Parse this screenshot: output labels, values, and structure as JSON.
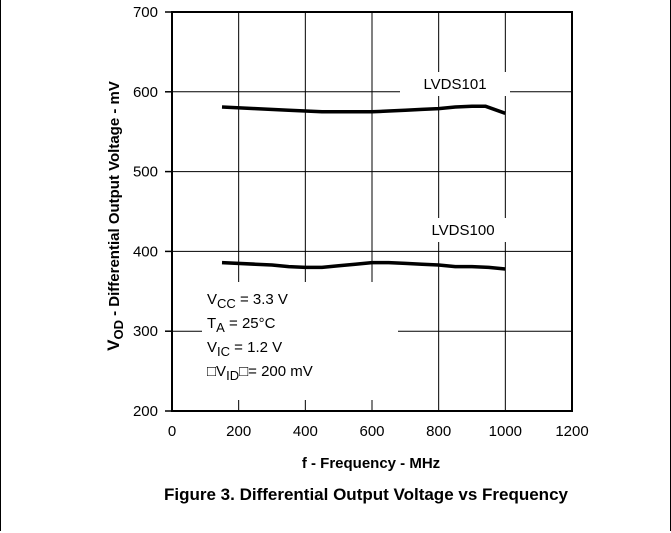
{
  "chart_data": {
    "type": "line",
    "title": "Figure 3. Differential Output Voltage vs Frequency",
    "xlabel": "f - Frequency - MHz",
    "ylabel_main": "V",
    "ylabel_sub": "OD",
    "ylabel_rest": " - Differential Output Voltage - mV",
    "xlim": [
      0,
      1200
    ],
    "ylim": [
      200,
      700
    ],
    "xticks": [
      0,
      200,
      400,
      600,
      800,
      1000,
      1200
    ],
    "yticks": [
      200,
      300,
      400,
      500,
      600,
      700
    ],
    "grid": true,
    "series": [
      {
        "name": "LVDS101",
        "x": [
          150,
          250,
          350,
          450,
          550,
          600,
          650,
          700,
          750,
          800,
          850,
          900,
          940,
          1000
        ],
        "y": [
          581,
          579,
          577,
          575,
          575,
          575,
          576,
          577,
          578,
          579,
          581,
          582,
          582,
          573
        ]
      },
      {
        "name": "LVDS100",
        "x": [
          150,
          250,
          300,
          350,
          400,
          450,
          500,
          550,
          600,
          650,
          700,
          750,
          800,
          850,
          900,
          950,
          1000
        ],
        "y": [
          386,
          384,
          383,
          381,
          380,
          380,
          382,
          384,
          386,
          386,
          385,
          384,
          383,
          381,
          381,
          380,
          378
        ]
      }
    ],
    "conditions": [
      {
        "pre": "V",
        "sub": "CC",
        "post": " = 3.3 V"
      },
      {
        "pre": "T",
        "sub": "A",
        "post": " = 25°C"
      },
      {
        "pre": "V",
        "sub": "IC",
        "post": " = 1.2 V"
      },
      {
        "pre": "□V",
        "sub": "ID",
        "post": "□= 200 mV"
      }
    ]
  },
  "colors": {
    "line": "#000000",
    "grid": "#000000",
    "background": "#ffffff"
  }
}
